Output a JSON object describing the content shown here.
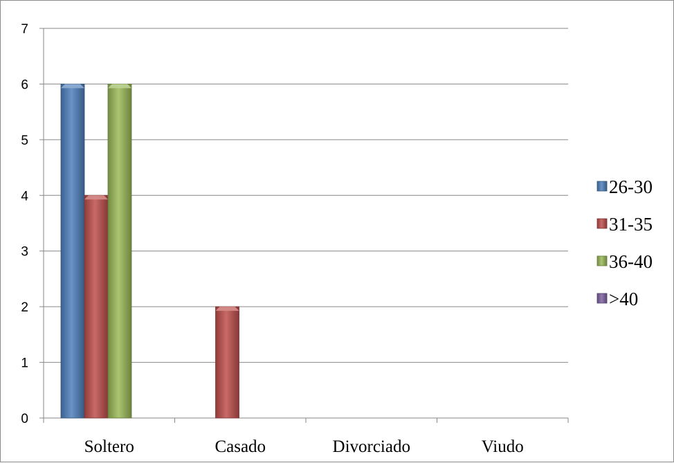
{
  "chart_data": {
    "type": "bar",
    "categories": [
      "Soltero",
      "Casado",
      "Divorciado",
      "Viudo"
    ],
    "series": [
      {
        "name": "26-30",
        "color": "#4f81bd",
        "values": [
          6,
          0,
          0,
          0
        ]
      },
      {
        "name": "31-35",
        "color": "#c0504d",
        "values": [
          4,
          2,
          0,
          0
        ]
      },
      {
        "name": "36-40",
        "color": "#9bbb59",
        "values": [
          6,
          0,
          0,
          0
        ]
      },
      {
        "name": ">40",
        "color": "#8064a2",
        "values": [
          0,
          0,
          0,
          0
        ]
      }
    ],
    "ylim": [
      0,
      7
    ],
    "yticks": [
      "0",
      "1",
      "2",
      "3",
      "4",
      "5",
      "6",
      "7"
    ],
    "grid": true,
    "legend_position": "right"
  }
}
